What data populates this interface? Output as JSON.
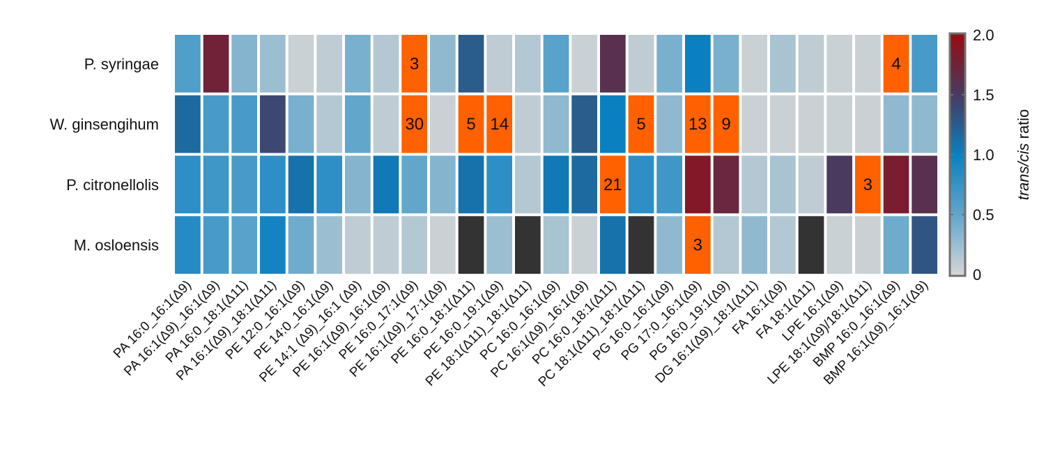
{
  "chart_data": {
    "type": "heatmap",
    "title": "",
    "rows": [
      "P. syringae",
      "W. ginsengihum",
      "P. citronellolis",
      "M. osloensis"
    ],
    "columns": [
      "PA 16:0_16:1(Δ9)",
      "PA 16:1(Δ9)_16:1(Δ9)",
      "PA 16:0_18:1(Δ11)",
      "PA 16:1(Δ9)_18:1(Δ11)",
      "PE 12:0_16:1(Δ9)",
      "PE 14:0_16:1(Δ9)",
      "PE 14:1 (Δ9)_16:1 (Δ9)",
      "PE 16:1(Δ9)_16:1(Δ9)",
      "PE 16:0_17:1(Δ9)",
      "PE 16:1(Δ9)_17:1(Δ9)",
      "PE 16:0_18:1(Δ11)",
      "PE 16:0_19:1(Δ9)",
      "PE 18:1(Δ11)_18:1(Δ11)",
      "PC 16:0_16:1(Δ9)",
      "PC 16:1(Δ9)_16:1(Δ9)",
      "PC 16:0_18:1(Δ11)",
      "PC 18:1(Δ11)_18:1(Δ11)",
      "PG 16:0_16:1(Δ9)",
      "PG 17:0_16:1(Δ9)",
      "PG 16:0_19:1(Δ9)",
      "DG 16:1(Δ9)_18:1(Δ11)",
      "FA 16:1(Δ9)",
      "FA 18:1(Δ11)",
      "LPE 16:1(Δ9)",
      "LPE 18:1(Δ9)/18:1(Δ11)",
      "BMP 16:0_16:1(Δ9)",
      "BMP 16:1(Δ9)_16:1(Δ9)"
    ],
    "values": [
      [
        0.6,
        1.75,
        0.35,
        0.25,
        0.05,
        0.1,
        0.4,
        0.15,
        3,
        0.3,
        1.25,
        0.1,
        0.15,
        0.55,
        0.05,
        1.6,
        0.1,
        0.4,
        1.0,
        0.4,
        0.05,
        0.2,
        0.1,
        0.05,
        0.05,
        4,
        0.65
      ],
      [
        1.15,
        0.65,
        0.65,
        1.4,
        0.4,
        0.15,
        0.5,
        0.1,
        30,
        0.05,
        5,
        14,
        0.1,
        0.3,
        1.25,
        1.0,
        5,
        0.3,
        13,
        9,
        0.05,
        0.05,
        0.05,
        0.05,
        0.05,
        0.3,
        0.3
      ],
      [
        0.8,
        0.7,
        0.65,
        0.8,
        1.1,
        0.8,
        0.35,
        1.05,
        0.5,
        0.35,
        1.1,
        0.8,
        0.15,
        1.05,
        1.15,
        21,
        0.8,
        0.7,
        1.85,
        1.7,
        0.15,
        0.2,
        0.1,
        1.5,
        3,
        1.8,
        1.6
      ],
      [
        0.85,
        0.65,
        0.55,
        0.95,
        0.45,
        0.25,
        0.1,
        0.1,
        0.15,
        0.05,
        null,
        0.25,
        null,
        0.2,
        0.05,
        1.1,
        null,
        0.3,
        3,
        0.15,
        0.3,
        0.15,
        null,
        0.05,
        0.05,
        0.45,
        1.3
      ]
    ],
    "missing_value_note": "null = not detected (black cell)",
    "over_range_rule": "values > 2 drawn orange with numeric label",
    "colorbar": {
      "label_italic": "trans/cis",
      "label_rest": " ratio",
      "range": [
        0,
        2.0
      ],
      "ticks": [
        "0",
        "0.5",
        "1.0",
        "1.5",
        "2.0"
      ],
      "tick_values": [
        0,
        0.5,
        1.0,
        1.5,
        2.0
      ]
    },
    "colors": {
      "stops": [
        [
          0,
          "#d6d6d6"
        ],
        [
          0.5,
          "#62a6cc"
        ],
        [
          1.0,
          "#0a80c0"
        ],
        [
          1.25,
          "#2a5c8c"
        ],
        [
          1.5,
          "#4a3a60"
        ],
        [
          2.0,
          "#9a0a10"
        ]
      ],
      "over_range": "#ff6000",
      "missing": "#333333"
    }
  }
}
